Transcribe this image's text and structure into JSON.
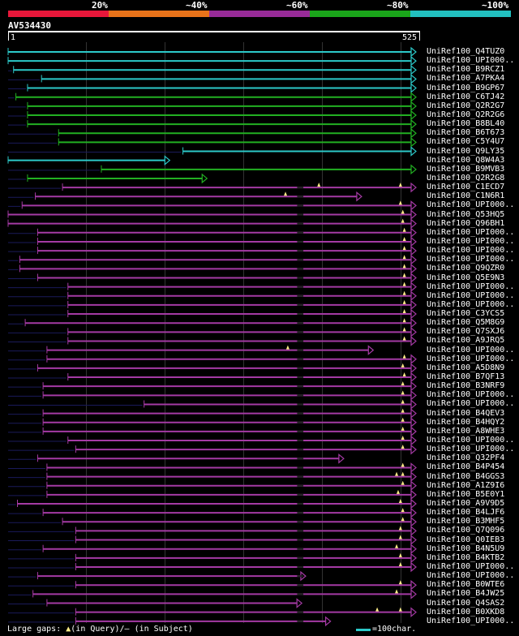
{
  "header": {
    "scale": [
      {
        "label": "20%",
        "color": "#e8173a"
      },
      {
        "label": "~40%",
        "color": "#e8731a"
      },
      {
        "label": "~60%",
        "color": "#982b98"
      },
      {
        "label": "~80%",
        "color": "#1aa51a"
      },
      {
        "label": "~100%",
        "color": "#22c0c0"
      }
    ]
  },
  "query": {
    "id": "AV534430",
    "start_label": "1",
    "end_label": "525",
    "length": 525
  },
  "colors": {
    "cyan": "#2cc9c9",
    "green": "#22b022",
    "purple": "#a43aa4",
    "marker": "#ffee88"
  },
  "hits": [
    {
      "name": "UniRef100_Q4TUZ0",
      "s": 0,
      "e": 525,
      "c": "cyan"
    },
    {
      "name": "UniRef100_UPI000..",
      "s": 0,
      "e": 525,
      "c": "cyan"
    },
    {
      "name": "UniRef100_B9RCZ1",
      "s": 7,
      "e": 525,
      "c": "cyan"
    },
    {
      "name": "UniRef100_A7PKA4",
      "s": 43,
      "e": 525,
      "c": "cyan"
    },
    {
      "name": "UniRef100_B9GP67",
      "s": 25,
      "e": 525,
      "c": "cyan"
    },
    {
      "name": "UniRef100_C6TJ42",
      "s": 10,
      "e": 525,
      "c": "green"
    },
    {
      "name": "UniRef100_Q2R2G7",
      "s": 25,
      "e": 525,
      "c": "green"
    },
    {
      "name": "UniRef100_Q2R2G6",
      "s": 25,
      "e": 525,
      "c": "green"
    },
    {
      "name": "UniRef100_B8BL40",
      "s": 25,
      "e": 525,
      "c": "green"
    },
    {
      "name": "UniRef100_B6T673",
      "s": 65,
      "e": 525,
      "c": "green"
    },
    {
      "name": "UniRef100_C5Y4U7",
      "s": 65,
      "e": 525,
      "c": "green"
    },
    {
      "name": "UniRef100_Q9LY35",
      "s": 225,
      "e": 525,
      "c": "cyan"
    },
    {
      "name": "UniRef100_Q8W4A3",
      "s": 0,
      "e": 208,
      "c": "cyan"
    },
    {
      "name": "UniRef100_B9MVB3",
      "s": 120,
      "e": 525,
      "c": "green"
    },
    {
      "name": "UniRef100_Q2R2G8",
      "s": 25,
      "e": 256,
      "c": "green"
    },
    {
      "name": "UniRef100_C1ECD7",
      "s": 70,
      "e": 525,
      "c": "purple",
      "m": [
        [
          400,
          0
        ],
        [
          505,
          0
        ]
      ]
    },
    {
      "name": "UniRef100_C1N6R1",
      "s": 35,
      "e": 455,
      "c": "purple",
      "m": [
        [
          357,
          1
        ]
      ]
    },
    {
      "name": "UniRef100_UPI000..",
      "s": 18,
      "e": 525,
      "c": "purple",
      "m": [
        [
          505,
          0
        ]
      ]
    },
    {
      "name": "UniRef100_Q53HQ5",
      "s": 0,
      "e": 525,
      "c": "purple",
      "m": [
        [
          508,
          0
        ]
      ]
    },
    {
      "name": "UniRef100_Q96BH1",
      "s": 0,
      "e": 525,
      "c": "purple",
      "m": [
        [
          508,
          0
        ]
      ]
    },
    {
      "name": "UniRef100_UPI000..",
      "s": 38,
      "e": 525,
      "c": "purple",
      "m": [
        [
          510,
          0
        ]
      ]
    },
    {
      "name": "UniRef100_UPI000..",
      "s": 38,
      "e": 525,
      "c": "purple",
      "m": [
        [
          510,
          0
        ]
      ]
    },
    {
      "name": "UniRef100_UPI000..",
      "s": 38,
      "e": 525,
      "c": "purple",
      "m": [
        [
          510,
          0
        ]
      ]
    },
    {
      "name": "UniRef100_UPI000..",
      "s": 15,
      "e": 525,
      "c": "purple",
      "m": [
        [
          510,
          0
        ]
      ]
    },
    {
      "name": "UniRef100_Q9QZR0",
      "s": 15,
      "e": 525,
      "c": "purple",
      "m": [
        [
          510,
          0
        ]
      ]
    },
    {
      "name": "UniRef100_Q5E9N3",
      "s": 38,
      "e": 525,
      "c": "purple",
      "m": [
        [
          510,
          0
        ]
      ]
    },
    {
      "name": "UniRef100_UPI000..",
      "s": 77,
      "e": 525,
      "c": "purple",
      "m": [
        [
          510,
          0
        ]
      ]
    },
    {
      "name": "UniRef100_UPI000..",
      "s": 77,
      "e": 525,
      "c": "purple",
      "m": [
        [
          510,
          0
        ]
      ]
    },
    {
      "name": "UniRef100_UPI000..",
      "s": 77,
      "e": 525,
      "c": "purple",
      "m": [
        [
          510,
          0
        ]
      ]
    },
    {
      "name": "UniRef100_C3YCS5",
      "s": 77,
      "e": 525,
      "c": "purple",
      "m": [
        [
          510,
          0
        ]
      ]
    },
    {
      "name": "UniRef100_Q5M8G9",
      "s": 22,
      "e": 525,
      "c": "purple",
      "m": [
        [
          510,
          0
        ]
      ]
    },
    {
      "name": "UniRef100_Q7SXJ6",
      "s": 77,
      "e": 525,
      "c": "purple",
      "m": [
        [
          510,
          0
        ]
      ]
    },
    {
      "name": "UniRef100_A9JRQ5",
      "s": 77,
      "e": 525,
      "c": "purple",
      "m": [
        [
          510,
          0
        ]
      ]
    },
    {
      "name": "UniRef100_UPI000..",
      "s": 50,
      "e": 470,
      "c": "purple",
      "m": [
        [
          360,
          0
        ]
      ]
    },
    {
      "name": "UniRef100_UPI000..",
      "s": 50,
      "e": 525,
      "c": "purple",
      "m": [
        [
          510,
          0
        ]
      ]
    },
    {
      "name": "UniRef100_A5D8N9",
      "s": 38,
      "e": 525,
      "c": "purple",
      "m": [
        [
          508,
          0
        ]
      ]
    },
    {
      "name": "UniRef100_B7QF13",
      "s": 77,
      "e": 525,
      "c": "purple",
      "m": [
        [
          510,
          0
        ]
      ]
    },
    {
      "name": "UniRef100_B3NRF9",
      "s": 45,
      "e": 525,
      "c": "purple",
      "m": [
        [
          508,
          0
        ]
      ]
    },
    {
      "name": "UniRef100_UPI000..",
      "s": 45,
      "e": 525,
      "c": "purple",
      "m": [
        [
          508,
          0
        ]
      ]
    },
    {
      "name": "UniRef100_UPI000..",
      "s": 175,
      "e": 525,
      "c": "purple",
      "m": [
        [
          508,
          0
        ]
      ]
    },
    {
      "name": "UniRef100_B4QEV3",
      "s": 45,
      "e": 525,
      "c": "purple",
      "m": [
        [
          508,
          0
        ]
      ]
    },
    {
      "name": "UniRef100_B4HQY2",
      "s": 45,
      "e": 525,
      "c": "purple",
      "m": [
        [
          508,
          0
        ]
      ]
    },
    {
      "name": "UniRef100_A8WHE3",
      "s": 45,
      "e": 525,
      "c": "purple",
      "m": [
        [
          508,
          0
        ]
      ]
    },
    {
      "name": "UniRef100_UPI000..",
      "s": 77,
      "e": 525,
      "c": "purple",
      "m": [
        [
          508,
          0
        ]
      ]
    },
    {
      "name": "UniRef100_UPI000..",
      "s": 87,
      "e": 525,
      "c": "purple",
      "m": [
        [
          508,
          0
        ]
      ]
    },
    {
      "name": "UniRef100_Q32PF4",
      "s": 38,
      "e": 432,
      "c": "purple"
    },
    {
      "name": "UniRef100_B4P454",
      "s": 50,
      "e": 525,
      "c": "purple",
      "m": [
        [
          508,
          0
        ]
      ]
    },
    {
      "name": "UniRef100_B4GGS3",
      "s": 50,
      "e": 525,
      "c": "purple",
      "m": [
        [
          500,
          0
        ],
        [
          508,
          0
        ]
      ]
    },
    {
      "name": "UniRef100_A1Z9I6",
      "s": 50,
      "e": 525,
      "c": "purple",
      "m": [
        [
          508,
          0
        ]
      ]
    },
    {
      "name": "UniRef100_B5E0Y1",
      "s": 50,
      "e": 525,
      "c": "purple",
      "m": [
        [
          502,
          0
        ]
      ]
    },
    {
      "name": "UniRef100_A9V9D5",
      "s": 12,
      "e": 525,
      "c": "purple",
      "m": [
        [
          505,
          0
        ]
      ]
    },
    {
      "name": "UniRef100_B4LJF6",
      "s": 45,
      "e": 525,
      "c": "purple",
      "m": [
        [
          508,
          0
        ]
      ]
    },
    {
      "name": "UniRef100_B3MHF5",
      "s": 70,
      "e": 525,
      "c": "purple",
      "m": [
        [
          508,
          0
        ]
      ]
    },
    {
      "name": "UniRef100_Q7Q096",
      "s": 87,
      "e": 525,
      "c": "purple",
      "m": [
        [
          505,
          0
        ]
      ]
    },
    {
      "name": "UniRef100_Q0IEB3",
      "s": 87,
      "e": 525,
      "c": "purple",
      "m": [
        [
          505,
          0
        ]
      ]
    },
    {
      "name": "UniRef100_B4N5U9",
      "s": 45,
      "e": 525,
      "c": "purple",
      "m": [
        [
          500,
          0
        ]
      ]
    },
    {
      "name": "UniRef100_B4KTB2",
      "s": 87,
      "e": 525,
      "c": "purple",
      "m": [
        [
          505,
          0
        ]
      ]
    },
    {
      "name": "UniRef100_UPI000..",
      "s": 87,
      "e": 525,
      "c": "purple",
      "m": [
        [
          505,
          0
        ]
      ]
    },
    {
      "name": "UniRef100_UPI000..",
      "s": 38,
      "e": 383,
      "c": "purple"
    },
    {
      "name": "UniRef100_B0WTE6",
      "s": 87,
      "e": 525,
      "c": "purple",
      "m": [
        [
          505,
          0
        ]
      ]
    },
    {
      "name": "UniRef100_B4JW25",
      "s": 32,
      "e": 525,
      "c": "purple",
      "m": [
        [
          500,
          0
        ]
      ]
    },
    {
      "name": "UniRef100_Q4SAS2",
      "s": 50,
      "e": 378,
      "c": "purple"
    },
    {
      "name": "UniRef100_B0XKD8",
      "s": 87,
      "e": 525,
      "c": "purple",
      "m": [
        [
          475,
          0
        ],
        [
          505,
          0
        ]
      ]
    },
    {
      "name": "UniRef100_UPI000..",
      "s": 87,
      "e": 415,
      "c": "purple"
    }
  ],
  "footer": {
    "gaps_prefix": "Large gaps: ",
    "gaps_query_marker": "▲",
    "gaps_query_text": "(in Query)/",
    "gaps_subject_marker": "–",
    "gaps_subject_text": " (in Subject)",
    "legend_text": "=100char."
  }
}
